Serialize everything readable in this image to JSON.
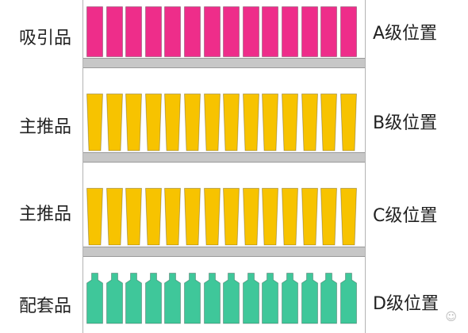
{
  "colors": {
    "attractor": "#ee2d8a",
    "main": "#f7c300",
    "complementary": "#3fc79a",
    "shelf": "#c7c7c7"
  },
  "rows": [
    {
      "category": "吸引品",
      "position": "A级位置",
      "shape": "box",
      "color_key": "attractor",
      "count": 14
    },
    {
      "category": "主推品",
      "position": "B级位置",
      "shape": "cup",
      "color_key": "main",
      "count": 14
    },
    {
      "category": "主推品",
      "position": "C级位置",
      "shape": "cup",
      "color_key": "main",
      "count": 14
    },
    {
      "category": "配套品",
      "position": "D级位置",
      "shape": "bottle",
      "color_key": "complementary",
      "count": 14
    }
  ]
}
